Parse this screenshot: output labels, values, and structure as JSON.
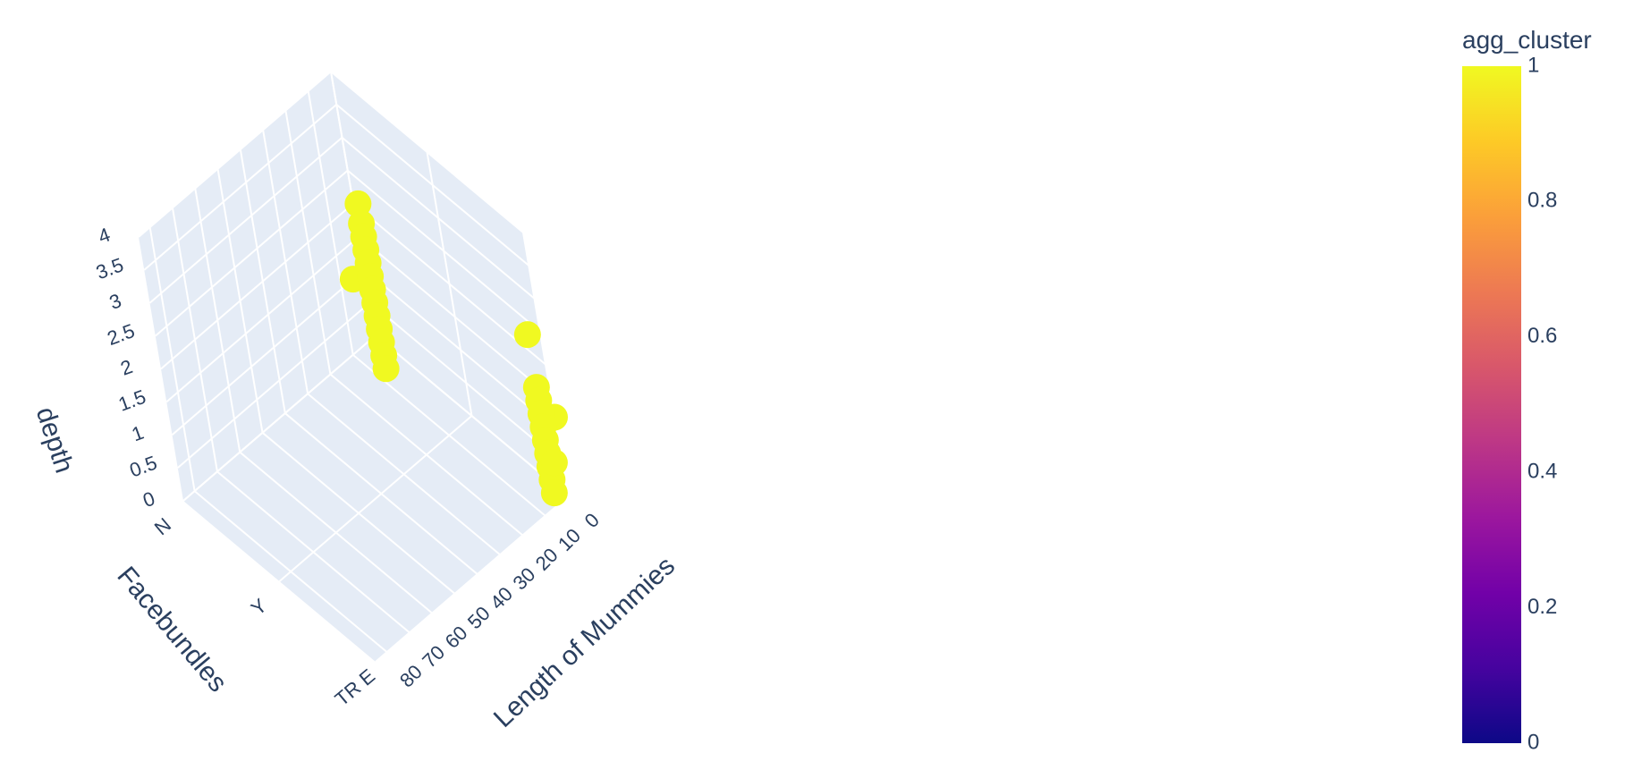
{
  "chart_data": {
    "type": "scatter3d",
    "axes": {
      "x": {
        "title": "Length of Mummies",
        "ticks": [
          "0",
          "10",
          "20",
          "30",
          "40",
          "50",
          "60",
          "70",
          "80"
        ],
        "range": [
          0,
          85
        ]
      },
      "y": {
        "title": "Facebundles",
        "categories": [
          "N",
          "Y",
          "TR E"
        ]
      },
      "z": {
        "title": "depth",
        "ticks": [
          "0",
          "0.5",
          "1",
          "1.5",
          "2",
          "2.5",
          "3",
          "3.5",
          "4"
        ],
        "range": [
          0,
          4
        ]
      }
    },
    "grid": true,
    "colorbar": {
      "title": "agg_cluster",
      "ticks": [
        "0",
        "0.2",
        "0.4",
        "0.6",
        "0.8",
        "1"
      ],
      "range": [
        0,
        1
      ],
      "colorscale": [
        "#0d0887",
        "#46039f",
        "#7201a8",
        "#9c179e",
        "#bd3786",
        "#d8576b",
        "#ed7953",
        "#fb9f3a",
        "#fdca26",
        "#f0f921"
      ]
    },
    "marker_color": "#f0f921",
    "points": [
      {
        "x": 5,
        "y": "N",
        "z": 1.0,
        "c": 1
      },
      {
        "x": 0,
        "y": "TR E",
        "z": 1.2,
        "c": 1
      },
      {
        "x": 30,
        "y": "Y",
        "z": 4.1,
        "c": 1
      },
      {
        "x": 30,
        "y": "Y",
        "z": 3.8,
        "c": 1
      },
      {
        "x": 30,
        "y": "Y",
        "z": 3.6,
        "c": 1
      },
      {
        "x": 30,
        "y": "Y",
        "z": 3.4,
        "c": 1
      },
      {
        "x": 30,
        "y": "Y",
        "z": 3.2,
        "c": 1
      },
      {
        "x": 30,
        "y": "Y",
        "z": 3.0,
        "c": 1
      },
      {
        "x": 30,
        "y": "Y",
        "z": 2.8,
        "c": 1
      },
      {
        "x": 30,
        "y": "Y",
        "z": 2.6,
        "c": 1
      },
      {
        "x": 30,
        "y": "Y",
        "z": 2.4,
        "c": 1
      },
      {
        "x": 30,
        "y": "Y",
        "z": 2.2,
        "c": 1
      },
      {
        "x": 30,
        "y": "Y",
        "z": 2.0,
        "c": 1
      },
      {
        "x": 30,
        "y": "Y",
        "z": 1.8,
        "c": 1
      },
      {
        "x": 30,
        "y": "Y",
        "z": 1.6,
        "c": 1
      },
      {
        "x": 5,
        "y": "TR E",
        "z": 2.6,
        "c": 1
      },
      {
        "x": 5,
        "y": "TR E",
        "z": 1.8,
        "c": 1
      },
      {
        "x": 5,
        "y": "TR E",
        "z": 1.6,
        "c": 1
      },
      {
        "x": 5,
        "y": "TR E",
        "z": 1.4,
        "c": 1
      },
      {
        "x": 5,
        "y": "TR E",
        "z": 1.2,
        "c": 1
      },
      {
        "x": 5,
        "y": "TR E",
        "z": 1.0,
        "c": 1
      },
      {
        "x": 5,
        "y": "TR E",
        "z": 0.8,
        "c": 1
      },
      {
        "x": 5,
        "y": "TR E",
        "z": 0.6,
        "c": 1
      },
      {
        "x": 5,
        "y": "TR E",
        "z": 0.4,
        "c": 1
      },
      {
        "x": 5,
        "y": "TR E",
        "z": 0.2,
        "c": 1
      },
      {
        "x": 3,
        "y": "TR E",
        "z": 0.6,
        "c": 1
      }
    ]
  }
}
